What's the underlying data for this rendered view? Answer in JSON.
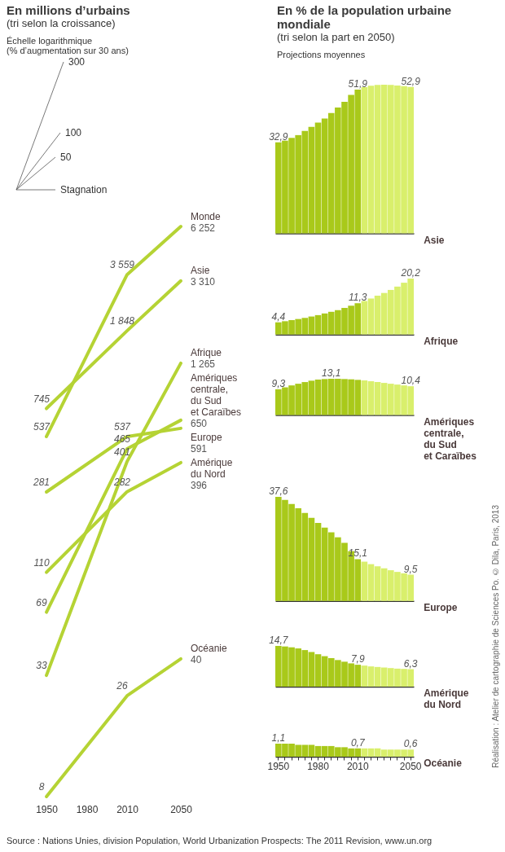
{
  "chart_data": [
    {
      "type": "line",
      "title": "En millions d’urbains",
      "subtitle": "(tri selon la croissance)",
      "log": true,
      "tick_labels": "x",
      "xlim": [
        1950,
        2050
      ],
      "xticks": [
        1950,
        1980,
        2010,
        2050
      ],
      "annotations": [
        "Échelle logarithmique",
        "(% d’augmentation sur 30 ans)",
        "300",
        "100",
        "50",
        "Stagnation",
        "Source : Nations Unies, division Population, World Urbanization Prospects: The 2011 Revision, www.un.org",
        "Réalisation : Atelier de cartographie de Sciences Po. © Dila, Paris, 2013"
      ],
      "series": [
        {
          "name": "Afrique",
          "color": "#b5d334",
          "x": [
            1950,
            2010,
            2050
          ],
          "values": [
            33,
            401,
            1265
          ],
          "value_labels": [
            "33",
            "401",
            "1 265"
          ]
        },
        {
          "name": "Asie",
          "color": "#b5d334",
          "x": [
            1950,
            2010,
            2050
          ],
          "values": [
            745,
            1848,
            3310
          ],
          "value_labels": [
            "745",
            "1 848",
            "3 310"
          ]
        },
        {
          "name": "Amériques\ncentrale,\ndu Sud\net Caraïbes",
          "color": "#b5d334",
          "x": [
            1950,
            2010,
            2050
          ],
          "values": [
            69,
            465,
            650
          ],
          "value_labels": [
            "69",
            "465",
            "650"
          ]
        },
        {
          "name": "Monde",
          "color": "#b5d334",
          "x": [
            1950,
            2010,
            2050
          ],
          "values": [
            537,
            3559,
            6252
          ],
          "value_labels": [
            "537",
            "3 559",
            "6 252"
          ]
        },
        {
          "name": "Océanie",
          "color": "#b5d334",
          "x": [
            1950,
            2010,
            2050
          ],
          "values": [
            8,
            26,
            40
          ],
          "value_labels": [
            "8",
            "26",
            "40"
          ]
        },
        {
          "name": "Amérique\ndu Nord",
          "color": "#b5d334",
          "x": [
            1950,
            2010,
            2050
          ],
          "values": [
            110,
            282,
            396
          ],
          "value_labels": [
            "110",
            "282",
            "396"
          ]
        },
        {
          "name": "Europe",
          "color": "#b5d334",
          "x": [
            1950,
            2010,
            2050
          ],
          "values": [
            281,
            537,
            591
          ],
          "value_labels": [
            "281",
            "537",
            "591"
          ]
        }
      ]
    },
    {
      "type": "bar",
      "title": "En % de la population urbaine mondiale",
      "subtitle": "(tri selon la part en 2050)",
      "annotations": [
        "Projections moyennes"
      ],
      "tick_labels": false,
      "categories": [
        "1950",
        null,
        null,
        null,
        null,
        null,
        "1980",
        null,
        null,
        null,
        null,
        null,
        "2010",
        null,
        null,
        null,
        null,
        null,
        null,
        null,
        "2050"
      ],
      "colors": [
        "#a9c91a",
        "#a9c91a",
        "#a9c91a",
        "#a9c91a",
        "#a9c91a",
        "#a9c91a",
        "#a9c91a",
        "#a9c91a",
        "#a9c91a",
        "#a9c91a",
        "#a9c91a",
        "#a9c91a",
        "#a9c91a",
        "#d9ef6c",
        "#d9ef6c",
        "#d9ef6c",
        "#d9ef6c",
        "#d9ef6c",
        "#d9ef6c",
        "#d9ef6c",
        "#d9ef6c"
      ],
      "series": [
        {
          "name": "Asie",
          "values": [
            32.9,
            33.5,
            34.5,
            35.5,
            37.0,
            38.5,
            40.0,
            41.5,
            43.5,
            45.5,
            47.5,
            50.0,
            51.9,
            52.8,
            53.3,
            53.6,
            53.7,
            53.6,
            53.4,
            53.2,
            52.9
          ],
          "value_labels": [
            "32,9",
            null,
            null,
            null,
            null,
            null,
            null,
            null,
            null,
            null,
            null,
            null,
            "51,9",
            null,
            null,
            null,
            null,
            null,
            null,
            null,
            "52,9"
          ]
        }
      ]
    },
    {
      "type": "bar",
      "tick_labels": false,
      "categories": [
        "1950",
        null,
        null,
        null,
        null,
        null,
        "1980",
        null,
        null,
        null,
        null,
        null,
        "2010",
        null,
        null,
        null,
        null,
        null,
        null,
        null,
        "2050"
      ],
      "colors": [
        "#a9c91a",
        "#a9c91a",
        "#a9c91a",
        "#a9c91a",
        "#a9c91a",
        "#a9c91a",
        "#a9c91a",
        "#a9c91a",
        "#a9c91a",
        "#a9c91a",
        "#a9c91a",
        "#a9c91a",
        "#a9c91a",
        "#d9ef6c",
        "#d9ef6c",
        "#d9ef6c",
        "#d9ef6c",
        "#d9ef6c",
        "#d9ef6c",
        "#d9ef6c",
        "#d9ef6c"
      ],
      "series": [
        {
          "name": "Afrique",
          "values": [
            4.4,
            4.8,
            5.2,
            5.6,
            6.0,
            6.5,
            7.0,
            7.6,
            8.2,
            8.8,
            9.6,
            10.4,
            11.3,
            12.1,
            13.0,
            14.0,
            15.0,
            16.1,
            17.3,
            18.7,
            20.2
          ],
          "value_labels": [
            "4,4",
            null,
            null,
            null,
            null,
            null,
            null,
            null,
            null,
            null,
            null,
            null,
            "11,3",
            null,
            null,
            null,
            null,
            null,
            null,
            null,
            "20,2"
          ]
        }
      ]
    },
    {
      "type": "bar",
      "tick_labels": false,
      "categories": [
        "1950",
        null,
        null,
        null,
        null,
        null,
        "1980",
        null,
        null,
        null,
        null,
        null,
        "2010",
        null,
        null,
        null,
        null,
        null,
        null,
        null,
        "2050"
      ],
      "colors": [
        "#a9c91a",
        "#a9c91a",
        "#a9c91a",
        "#a9c91a",
        "#a9c91a",
        "#a9c91a",
        "#a9c91a",
        "#a9c91a",
        "#a9c91a",
        "#a9c91a",
        "#a9c91a",
        "#a9c91a",
        "#a9c91a",
        "#d9ef6c",
        "#d9ef6c",
        "#d9ef6c",
        "#d9ef6c",
        "#d9ef6c",
        "#d9ef6c",
        "#d9ef6c",
        "#d9ef6c"
      ],
      "series": [
        {
          "name": "Amériques\ncentrale,\ndu Sud\net Caraïbes",
          "values": [
            9.3,
            10.0,
            10.7,
            11.3,
            11.9,
            12.4,
            12.8,
            13.0,
            13.1,
            13.1,
            13.0,
            12.9,
            12.7,
            12.5,
            12.2,
            11.9,
            11.6,
            11.3,
            11.0,
            10.7,
            10.4
          ],
          "value_labels": [
            "9,3",
            null,
            null,
            null,
            null,
            null,
            null,
            null,
            "13,1",
            null,
            null,
            null,
            null,
            null,
            null,
            null,
            null,
            null,
            null,
            null,
            "10,4"
          ]
        }
      ]
    },
    {
      "type": "bar",
      "tick_labels": false,
      "categories": [
        "1950",
        null,
        null,
        null,
        null,
        null,
        "1980",
        null,
        null,
        null,
        null,
        null,
        "2010",
        null,
        null,
        null,
        null,
        null,
        null,
        null,
        "2050"
      ],
      "colors": [
        "#a9c91a",
        "#a9c91a",
        "#a9c91a",
        "#a9c91a",
        "#a9c91a",
        "#a9c91a",
        "#a9c91a",
        "#a9c91a",
        "#a9c91a",
        "#a9c91a",
        "#a9c91a",
        "#a9c91a",
        "#a9c91a",
        "#d9ef6c",
        "#d9ef6c",
        "#d9ef6c",
        "#d9ef6c",
        "#d9ef6c",
        "#d9ef6c",
        "#d9ef6c",
        "#d9ef6c"
      ],
      "series": [
        {
          "name": "Europe",
          "values": [
            37.6,
            36.5,
            35.0,
            33.5,
            31.8,
            30.0,
            28.2,
            26.5,
            24.8,
            23.0,
            21.0,
            18.0,
            15.1,
            14.2,
            13.3,
            12.5,
            11.8,
            11.1,
            10.5,
            10.0,
            9.5
          ],
          "value_labels": [
            "37,6",
            null,
            null,
            null,
            null,
            null,
            null,
            null,
            null,
            null,
            null,
            null,
            "15,1",
            null,
            null,
            null,
            null,
            null,
            null,
            null,
            "9,5"
          ]
        }
      ]
    },
    {
      "type": "bar",
      "tick_labels": false,
      "categories": [
        "1950",
        null,
        null,
        null,
        null,
        null,
        "1980",
        null,
        null,
        null,
        null,
        null,
        "2010",
        null,
        null,
        null,
        null,
        null,
        null,
        null,
        "2050"
      ],
      "colors": [
        "#a9c91a",
        "#a9c91a",
        "#a9c91a",
        "#a9c91a",
        "#a9c91a",
        "#a9c91a",
        "#a9c91a",
        "#a9c91a",
        "#a9c91a",
        "#a9c91a",
        "#a9c91a",
        "#a9c91a",
        "#a9c91a",
        "#d9ef6c",
        "#d9ef6c",
        "#d9ef6c",
        "#d9ef6c",
        "#d9ef6c",
        "#d9ef6c",
        "#d9ef6c",
        "#d9ef6c"
      ],
      "series": [
        {
          "name": "Amérique\ndu Nord",
          "values": [
            14.7,
            14.5,
            14.2,
            13.8,
            13.2,
            12.5,
            11.7,
            11.0,
            10.3,
            9.6,
            9.0,
            8.4,
            7.9,
            7.6,
            7.3,
            7.1,
            6.9,
            6.7,
            6.5,
            6.4,
            6.3
          ],
          "value_labels": [
            "14,7",
            null,
            null,
            null,
            null,
            null,
            null,
            null,
            null,
            null,
            null,
            null,
            "7,9",
            null,
            null,
            null,
            null,
            null,
            null,
            null,
            "6,3"
          ]
        }
      ]
    },
    {
      "type": "bar",
      "categories": [
        "1950",
        null,
        null,
        null,
        null,
        null,
        "1980",
        null,
        null,
        null,
        null,
        null,
        "2010",
        null,
        null,
        null,
        null,
        null,
        null,
        null,
        "2050"
      ],
      "colors": [
        "#a9c91a",
        "#a9c91a",
        "#a9c91a",
        "#a9c91a",
        "#a9c91a",
        "#a9c91a",
        "#a9c91a",
        "#a9c91a",
        "#a9c91a",
        "#a9c91a",
        "#a9c91a",
        "#a9c91a",
        "#a9c91a",
        "#d9ef6c",
        "#d9ef6c",
        "#d9ef6c",
        "#d9ef6c",
        "#d9ef6c",
        "#d9ef6c",
        "#d9ef6c",
        "#d9ef6c"
      ],
      "series": [
        {
          "name": "Océanie",
          "values": [
            1.1,
            1.1,
            1.1,
            1.0,
            1.0,
            1.0,
            0.9,
            0.9,
            0.9,
            0.8,
            0.8,
            0.7,
            0.7,
            0.7,
            0.7,
            0.7,
            0.6,
            0.6,
            0.6,
            0.6,
            0.6
          ],
          "value_labels": [
            "1,1",
            null,
            null,
            null,
            null,
            null,
            null,
            null,
            null,
            null,
            null,
            null,
            "0,7",
            null,
            null,
            null,
            null,
            null,
            null,
            null,
            "0,6"
          ]
        }
      ]
    }
  ]
}
